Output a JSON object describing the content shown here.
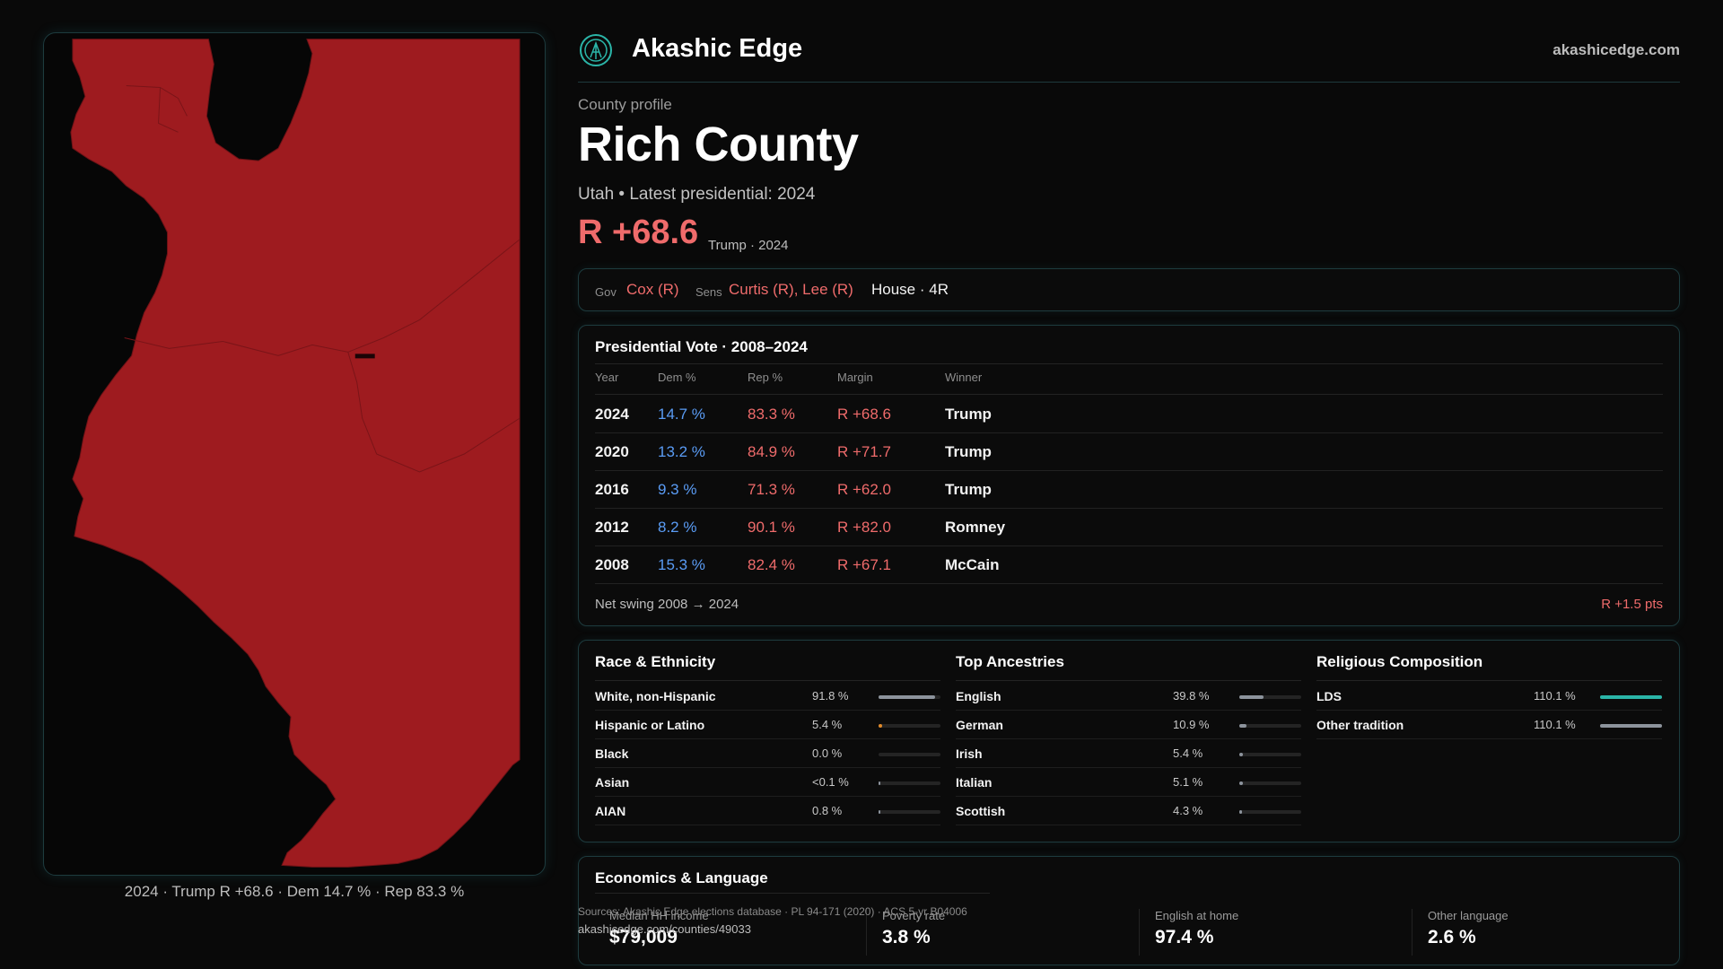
{
  "brand": {
    "name": "Akashic Edge",
    "site": "akashicedge.com",
    "accent": "#2bb5a8"
  },
  "profile": {
    "kicker": "County profile",
    "title": "Rich County",
    "subtitle": "Utah • Latest presidential: 2024",
    "margin": "R +68.6",
    "margin_note": "Trump · 2024"
  },
  "officials": {
    "gov_label": "Gov",
    "gov": "Cox (R)",
    "sens_label": "Sens",
    "sens": "Curtis (R), Lee (R)",
    "house": "House · 4R"
  },
  "presidential": {
    "title": "Presidential Vote · 2008–2024",
    "headers": [
      "Year",
      "Dem %",
      "Rep %",
      "Margin",
      "Winner"
    ],
    "rows": [
      {
        "year": "2024",
        "dem": "14.7 %",
        "rep": "83.3 %",
        "margin": "R +68.6",
        "winner": "Trump"
      },
      {
        "year": "2020",
        "dem": "13.2 %",
        "rep": "84.9 %",
        "margin": "R +71.7",
        "winner": "Trump"
      },
      {
        "year": "2016",
        "dem": "9.3 %",
        "rep": "71.3 %",
        "margin": "R +62.0",
        "winner": "Trump"
      },
      {
        "year": "2012",
        "dem": "8.2 %",
        "rep": "90.1 %",
        "margin": "R +82.0",
        "winner": "Romney"
      },
      {
        "year": "2008",
        "dem": "15.3 %",
        "rep": "82.4 %",
        "margin": "R +67.1",
        "winner": "McCain"
      }
    ],
    "swing_label": "Net swing 2008 → 2024",
    "swing_value": "R +1.5 pts"
  },
  "race": {
    "title": "Race & Ethnicity",
    "rows": [
      {
        "label": "White, non-Hispanic",
        "value": "91.8 %",
        "fraction": 0.918,
        "color": "#8c939c"
      },
      {
        "label": "Hispanic or Latino",
        "value": "5.4 %",
        "fraction": 0.054,
        "color": "#e08a2a"
      },
      {
        "label": "Black",
        "value": "0.0 %",
        "fraction": 0.0,
        "color": "#8c939c"
      },
      {
        "label": "Asian",
        "value": "<0.1 %",
        "fraction": 0.001,
        "color": "#8c939c"
      },
      {
        "label": "AIAN",
        "value": "0.8 %",
        "fraction": 0.008,
        "color": "#8c939c"
      }
    ]
  },
  "ancestry": {
    "title": "Top Ancestries",
    "rows": [
      {
        "label": "English",
        "value": "39.8 %",
        "fraction": 0.398,
        "color": "#8c939c"
      },
      {
        "label": "German",
        "value": "10.9 %",
        "fraction": 0.109,
        "color": "#8c939c"
      },
      {
        "label": "Irish",
        "value": "5.4 %",
        "fraction": 0.054,
        "color": "#8c939c"
      },
      {
        "label": "Italian",
        "value": "5.1 %",
        "fraction": 0.051,
        "color": "#8c939c"
      },
      {
        "label": "Scottish",
        "value": "4.3 %",
        "fraction": 0.043,
        "color": "#8c939c"
      }
    ]
  },
  "religion": {
    "title": "Religious Composition",
    "rows": [
      {
        "label": "LDS",
        "value": "110.1 %",
        "fraction": 1.0,
        "color": "#2bb5a8"
      },
      {
        "label": "Other tradition",
        "value": "110.1 %",
        "fraction": 1.0,
        "color": "#8c939c"
      }
    ]
  },
  "economics": {
    "title": "Economics & Language",
    "stats": [
      {
        "label": "Median HH income",
        "value": "$79,009"
      },
      {
        "label": "Poverty rate",
        "value": "3.8 %"
      },
      {
        "label": "English at home",
        "value": "97.4 %"
      },
      {
        "label": "Other language",
        "value": "2.6 %"
      }
    ]
  },
  "sources": {
    "text": "Sources: Akashic Edge elections database · PL 94-171 (2020) · ACS 5-yr B04006",
    "url": "akashicedge.com/counties/49033"
  },
  "map": {
    "caption": "2024 · Trump R +68.6 · Dem 14.7 % · Rep 83.3 %",
    "fill_color": "#9e1b1f"
  }
}
